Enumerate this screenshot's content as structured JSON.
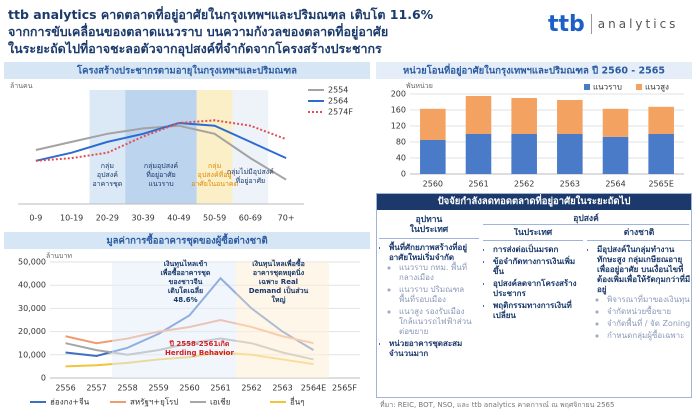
{
  "header": {
    "title_lines": [
      "ttb analytics คาดตลาดที่อยู่อาศัยในกรุงเทพฯและปริมณฑล เติบโต 11.6%",
      "จากการขับเคลื่อนของตลาดแนวราบ บนความกังวลของตลาดที่อยู่อาศัย",
      "ในระยะถัดไปที่อาจชะลอตัวจากอุปสงค์ที่จำกัดจากโครงสร้างประชากร"
    ],
    "logo": "ttb",
    "logo_sub": "analytics"
  },
  "chart_data": [
    {
      "type": "line",
      "title": "โครงสร้างประชากรตามอายุในกรุงเทพฯและปริมณฑล",
      "y_label": "ล้านคน",
      "categories": [
        "0-9",
        "10-19",
        "20-29",
        "30-39",
        "40-49",
        "50-59",
        "60-69",
        "70+"
      ],
      "ylim": [
        0,
        2
      ],
      "legend": "upper right",
      "series": [
        {
          "name": "2554",
          "color": "#a3a3a3",
          "values": [
            1.0,
            1.15,
            1.3,
            1.4,
            1.45,
            1.3,
            0.85,
            0.45
          ]
        },
        {
          "name": "2564",
          "color": "#2e6bd1",
          "values": [
            0.8,
            0.95,
            1.15,
            1.3,
            1.5,
            1.45,
            1.15,
            0.85
          ]
        },
        {
          "name": "2574F",
          "color": "#e05050",
          "dash": true,
          "values": [
            0.8,
            0.85,
            0.95,
            1.25,
            1.5,
            1.55,
            1.45,
            1.2
          ]
        }
      ],
      "annotations": [
        {
          "lines": [
            "กลุ่ม",
            "อุปสงค์",
            "อาคารชุด"
          ]
        },
        {
          "lines": [
            "กลุ่มอุปสงค์",
            "ที่อยู่อาศัย",
            "แนวราบ"
          ]
        },
        {
          "lines": [
            "กลุ่ม",
            "อุปสงค์ที่อยู่",
            "อาศัยในอนาคต"
          ]
        },
        {
          "lines": [
            "กลุ่มไม่มีอุปสงค์",
            "ที่อยู่อาศัย"
          ]
        }
      ]
    },
    {
      "type": "line",
      "title": "มูลค่าการซื้ออาคารชุดของผู้ซื้อต่างชาติ",
      "y_label": "ล้านบาท",
      "categories": [
        "2556",
        "2557",
        "2558",
        "2559",
        "2560",
        "2561",
        "2562",
        "2563",
        "2564E",
        "2565F"
      ],
      "ylim": [
        0,
        50000
      ],
      "yticks": [
        0,
        {
          "value": 10000,
          "label": "10,000"
        },
        {
          "value": 20000,
          "label": "20,000"
        },
        {
          "value": 30000,
          "label": "30,000"
        },
        {
          "value": 40000,
          "label": "40,000"
        },
        {
          "value": 50000,
          "label": "50,000"
        }
      ],
      "grid": true,
      "legend": "bottom",
      "series": [
        {
          "name": "ฮ่องกง+จีน",
          "color": "#3f6fc4",
          "values": [
            11000,
            9500,
            13000,
            19000,
            27000,
            43000,
            30000,
            20000,
            12000,
            null
          ]
        },
        {
          "name": "สหรัฐฯ+ยุโรป",
          "color": "#f09a72",
          "values": [
            18000,
            15000,
            17000,
            20000,
            22000,
            25000,
            22000,
            18000,
            15000,
            null
          ]
        },
        {
          "name": "เอเชีย",
          "color": "#a6a6a6",
          "values": [
            15000,
            12000,
            10000,
            12000,
            15000,
            17000,
            15000,
            11000,
            8000,
            null
          ]
        },
        {
          "name": "อื่นๆ",
          "color": "#f2c43d",
          "values": [
            5000,
            5500,
            6500,
            8000,
            9000,
            11000,
            10000,
            8000,
            6000,
            null
          ]
        }
      ],
      "annotations": [
        {
          "lines": [
            "เงินทุนไหลเข้า",
            "เพื่อซื้ออาคารชุด",
            "ของชาวจีน",
            "เติบโตเฉลี่ย",
            "48.6%"
          ]
        },
        {
          "lines": [
            "เงินทุนไหลเพื่อซื้อ",
            "อาคารชุดหยุดนิ่ง",
            "เฉพาะ Real",
            "Demand เป็นส่วน",
            "ใหญ่"
          ]
        },
        {
          "lines": [
            "ปี 2558-2561เกิด",
            "Herding Behavior"
          ]
        }
      ]
    },
    {
      "type": "bar",
      "stacked": true,
      "title": "หน่วยโอนที่อยู่อาศัยในกรุงเทพฯและปริมณฑล ปี 2560 - 2565",
      "y_label": "พันหน่วย",
      "categories": [
        "2560",
        "2561",
        "2562",
        "2563",
        "2564",
        "2565E"
      ],
      "ylim": [
        0,
        200
      ],
      "yticks": [
        0,
        40,
        80,
        120,
        160,
        200
      ],
      "grid": true,
      "legend": "upper right",
      "series": [
        {
          "name": "แนวราบ",
          "color": "#4a7bc8",
          "values": [
            85,
            100,
            100,
            100,
            93,
            100
          ]
        },
        {
          "name": "แนวสูง",
          "color": "#f4a261",
          "values": [
            78,
            95,
            90,
            85,
            70,
            68
          ]
        }
      ]
    }
  ],
  "factors": {
    "title": "ปัจจัยกำลังลดทอดตลาดที่อยู่อาศัยในระยะถัดไป",
    "supply": {
      "heading": "อุปทาน",
      "sub": "ในประเทศ",
      "items": [
        {
          "text": "พื้นที่ศักยภาพสร้างที่อยู่อาศัยใหม่เริ่มจำกัด",
          "sub": [
            "แนวราบ กทม. พื้นที่กลางเมือง",
            "แนวราบ ปริมณฑล พื้นที่รอบเมือง",
            "แนวสูง รองรับเมือง ใกล้แนวรถไฟฟ้าส่วนต่อขยาย"
          ]
        },
        {
          "text": "หน่วยอาคารชุดสะสมจำนวนมาก",
          "sub": []
        }
      ]
    },
    "demand": {
      "heading": "อุปสงค์",
      "domestic": {
        "sub": "ในประเทศ",
        "items": [
          {
            "text": "การส่งต่อเป็นมรดก",
            "sub": []
          },
          {
            "text": "ข้อจำกัดทางการเงินเพิ่มขึ้น",
            "sub": []
          },
          {
            "text": "อุปสงค์ลดจากโครงสร้างประชากร",
            "sub": []
          },
          {
            "text": "พฤติกรรมทางการเงินที่เปลี่ยน",
            "sub": []
          }
        ]
      },
      "foreign": {
        "sub": "ต่างชาติ",
        "items": [
          {
            "text": "มีอุปสงค์ในกลุ่มทำงานทักษะสูง กลุ่มเกษียณอายุเพื่ออยู่อาศัย บนเงื่อนไขที่ต้องเพิ่มเพื่อให้รัดกุมกว่าที่มีอยู่",
            "sub": [
              "พิจารณาที่มาของเงินทุน",
              "จำกัดหน่วยซื้อขาย",
              "จำกัดพื้นที่ / จัด Zoning",
              "กำหนดกลุ่มผู้ซื้อเฉพาะ"
            ]
          }
        ]
      }
    }
  },
  "source": "ที่มา: REIC, BOT, NSO, และ ttb analytics คาดการณ์ ณ พฤศจิกายน 2565"
}
